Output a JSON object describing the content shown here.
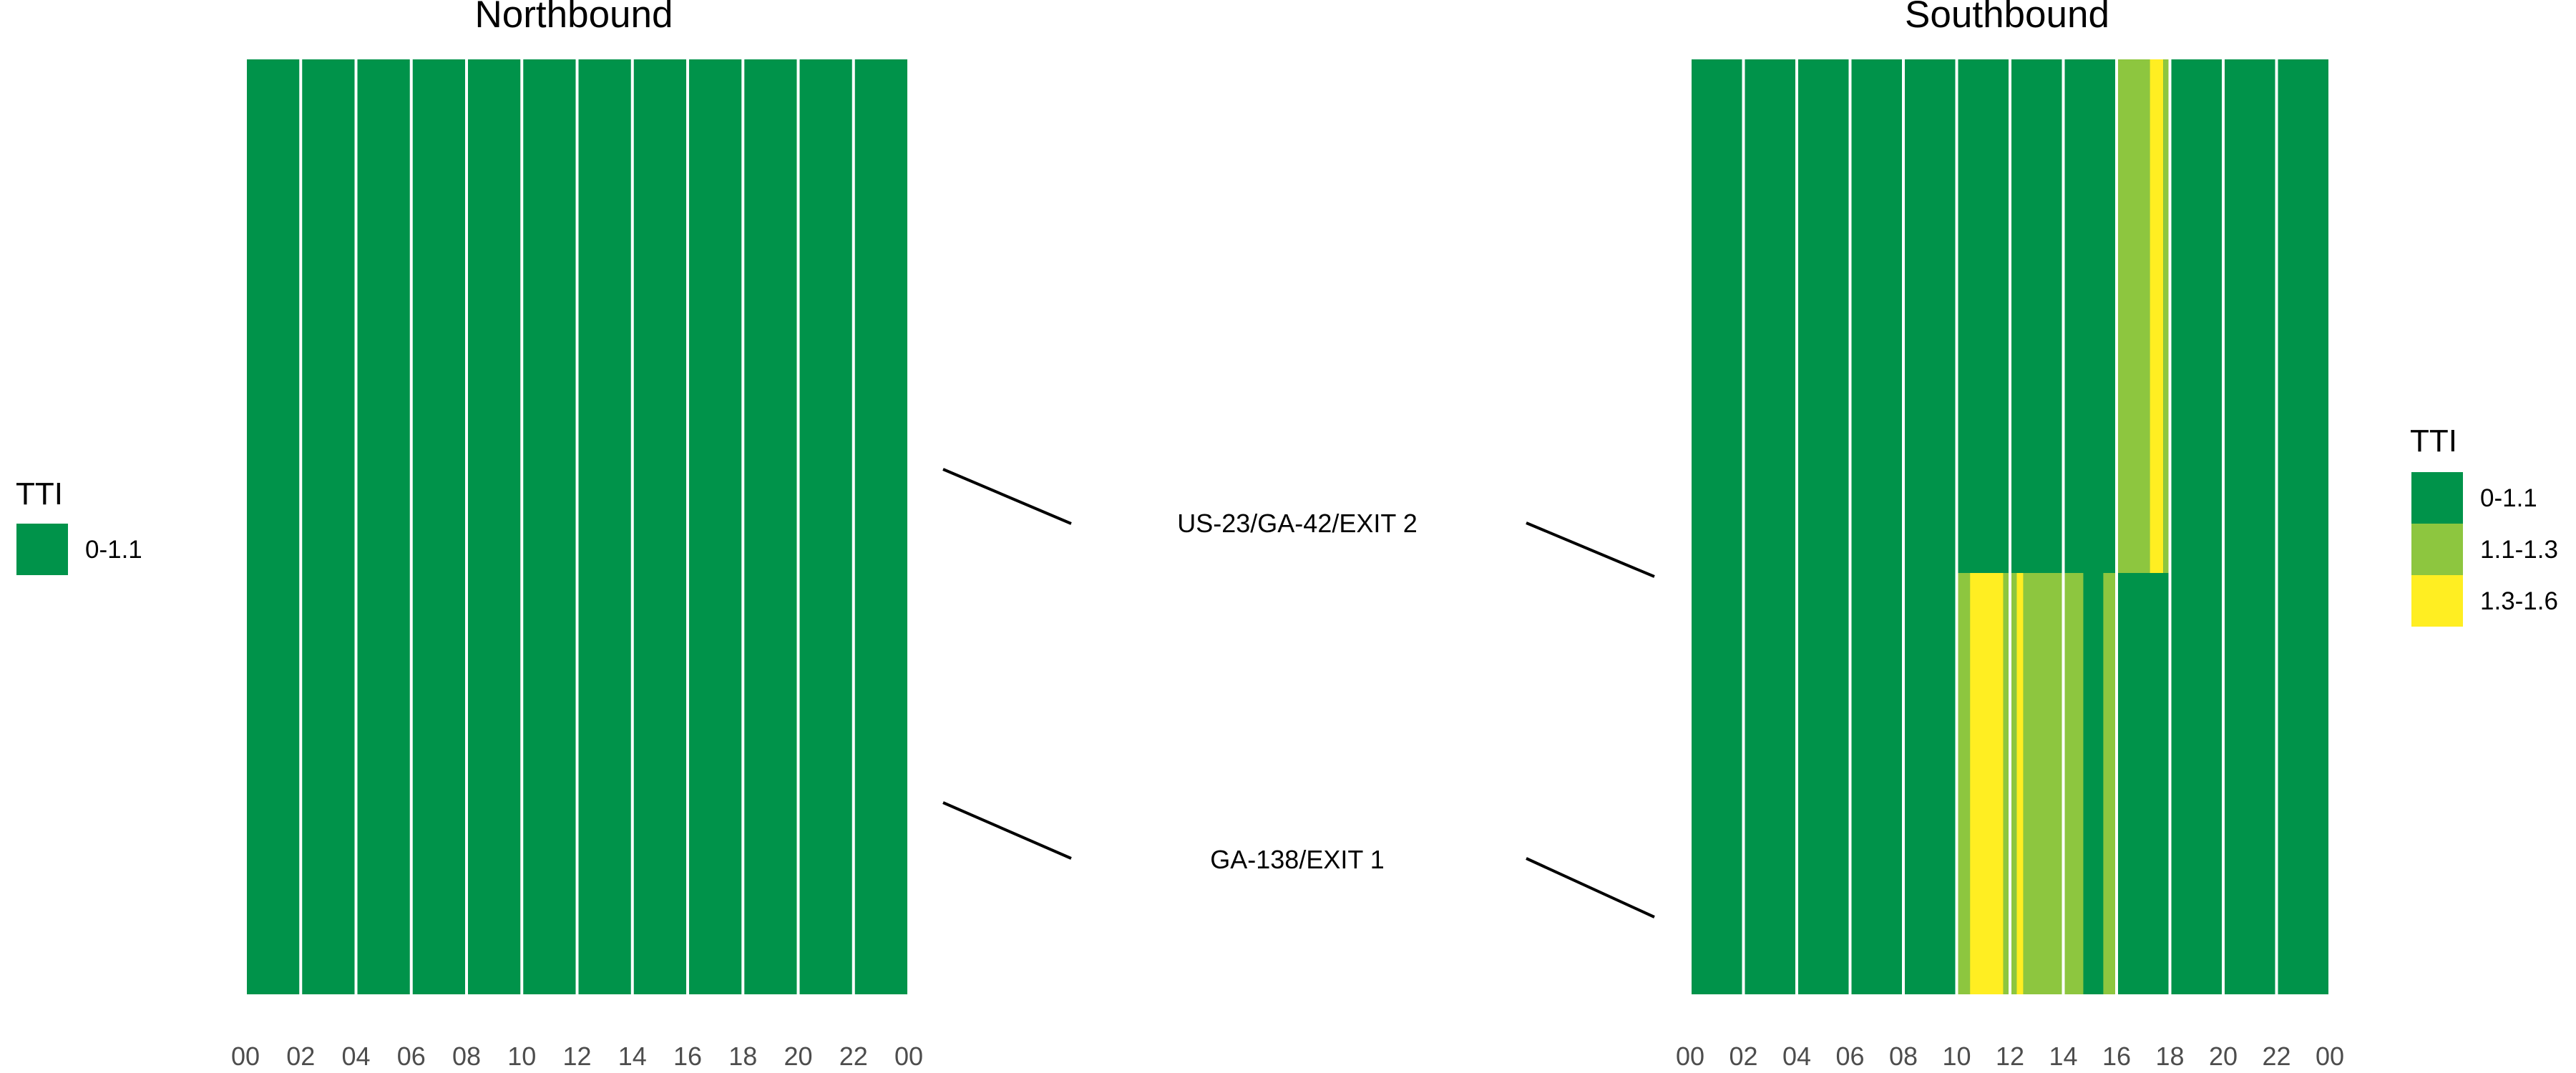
{
  "colors": {
    "0-1.1": "#00934A",
    "1.1-1.3": "#8DC63F",
    "1.3-1.6": "#FFEE22",
    "background": "#FFFFFF",
    "gridline": "#FFFFFF",
    "connector": "#000000"
  },
  "chart_data": [
    {
      "type": "heatmap",
      "title": "Northbound",
      "xlabel": "",
      "ylabel": "",
      "x_ticks": [
        "00",
        "02",
        "04",
        "06",
        "08",
        "10",
        "12",
        "14",
        "16",
        "18",
        "20",
        "22",
        "00"
      ],
      "xlim": [
        0,
        24
      ],
      "segments": [
        "GA-138/EXIT 1",
        "US-23/GA-42/EXIT 2"
      ],
      "legend": {
        "title": "TTI",
        "position": "left",
        "entries": [
          "0-1.1"
        ]
      },
      "default_category": "0-1.1",
      "cells": []
    },
    {
      "type": "heatmap",
      "title": "Southbound",
      "xlabel": "",
      "ylabel": "",
      "x_ticks": [
        "00",
        "02",
        "04",
        "06",
        "08",
        "10",
        "12",
        "14",
        "16",
        "18",
        "20",
        "22",
        "00"
      ],
      "xlim": [
        0,
        24
      ],
      "segments": [
        "GA-138/EXIT 1",
        "US-23/GA-42/EXIT 2"
      ],
      "legend": {
        "title": "TTI",
        "position": "right",
        "entries": [
          "0-1.1",
          "1.1-1.3",
          "1.3-1.6"
        ]
      },
      "default_category": "0-1.1",
      "cells": [
        {
          "segment": "US-23/GA-42/EXIT 2",
          "start": 16.0,
          "end": 17.25,
          "category": "1.1-1.3"
        },
        {
          "segment": "US-23/GA-42/EXIT 2",
          "start": 17.25,
          "end": 17.75,
          "category": "1.3-1.6"
        },
        {
          "segment": "US-23/GA-42/EXIT 2",
          "start": 17.75,
          "end": 18.0,
          "category": "1.1-1.3"
        },
        {
          "segment": "GA-138/EXIT 1",
          "start": 10.0,
          "end": 10.5,
          "category": "1.1-1.3"
        },
        {
          "segment": "GA-138/EXIT 1",
          "start": 10.5,
          "end": 11.75,
          "category": "1.3-1.6"
        },
        {
          "segment": "GA-138/EXIT 1",
          "start": 11.75,
          "end": 12.25,
          "category": "1.1-1.3"
        },
        {
          "segment": "GA-138/EXIT 1",
          "start": 12.25,
          "end": 12.5,
          "category": "1.3-1.6"
        },
        {
          "segment": "GA-138/EXIT 1",
          "start": 12.5,
          "end": 14.75,
          "category": "1.1-1.3"
        },
        {
          "segment": "GA-138/EXIT 1",
          "start": 15.5,
          "end": 16.0,
          "category": "1.1-1.3"
        }
      ]
    }
  ]
}
